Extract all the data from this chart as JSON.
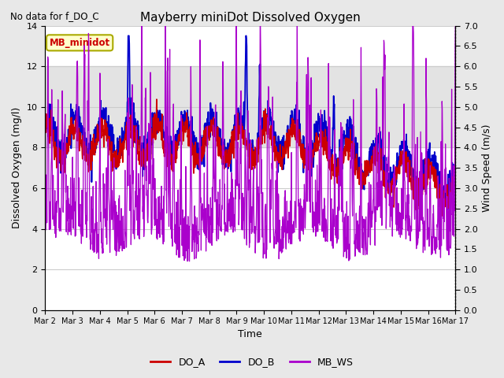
{
  "title": "Mayberry miniDot Dissolved Oxygen",
  "subtitle": "No data for f_DO_C",
  "xlabel": "Time",
  "ylabel_left": "Dissolved Oxygen (mg/l)",
  "ylabel_right": "Wind Speed (m/s)",
  "legend_label": "MB_minidot",
  "series_labels": [
    "DO_A",
    "DO_B",
    "MB_WS"
  ],
  "series_colors": [
    "#cc0000",
    "#0000cc",
    "#aa00cc"
  ],
  "xlim": [
    0,
    15
  ],
  "ylim_left": [
    0,
    14
  ],
  "ylim_right": [
    0,
    7.0
  ],
  "xtick_labels": [
    "Mar 2",
    "Mar 3",
    "Mar 4",
    "Mar 5",
    "Mar 6",
    "Mar 7",
    "Mar 8",
    "Mar 9",
    "Mar 10",
    "Mar 11",
    "Mar 12",
    "Mar 13",
    "Mar 14",
    "Mar 15",
    "Mar 16",
    "Mar 17"
  ],
  "xtick_positions": [
    0,
    1,
    2,
    3,
    4,
    5,
    6,
    7,
    8,
    9,
    10,
    11,
    12,
    13,
    14,
    15
  ],
  "ytick_left": [
    0,
    2,
    4,
    6,
    8,
    10,
    12,
    14
  ],
  "ytick_right": [
    0.0,
    0.5,
    1.0,
    1.5,
    2.0,
    2.5,
    3.0,
    3.5,
    4.0,
    4.5,
    5.0,
    5.5,
    6.0,
    6.5,
    7.0
  ],
  "shaded_band": [
    8.0,
    12.0
  ],
  "background_color": "#e8e8e8",
  "plot_bg_color": "#ffffff",
  "title_fontsize": 11,
  "axis_fontsize": 9,
  "tick_fontsize": 8,
  "legend_fontsize": 9
}
